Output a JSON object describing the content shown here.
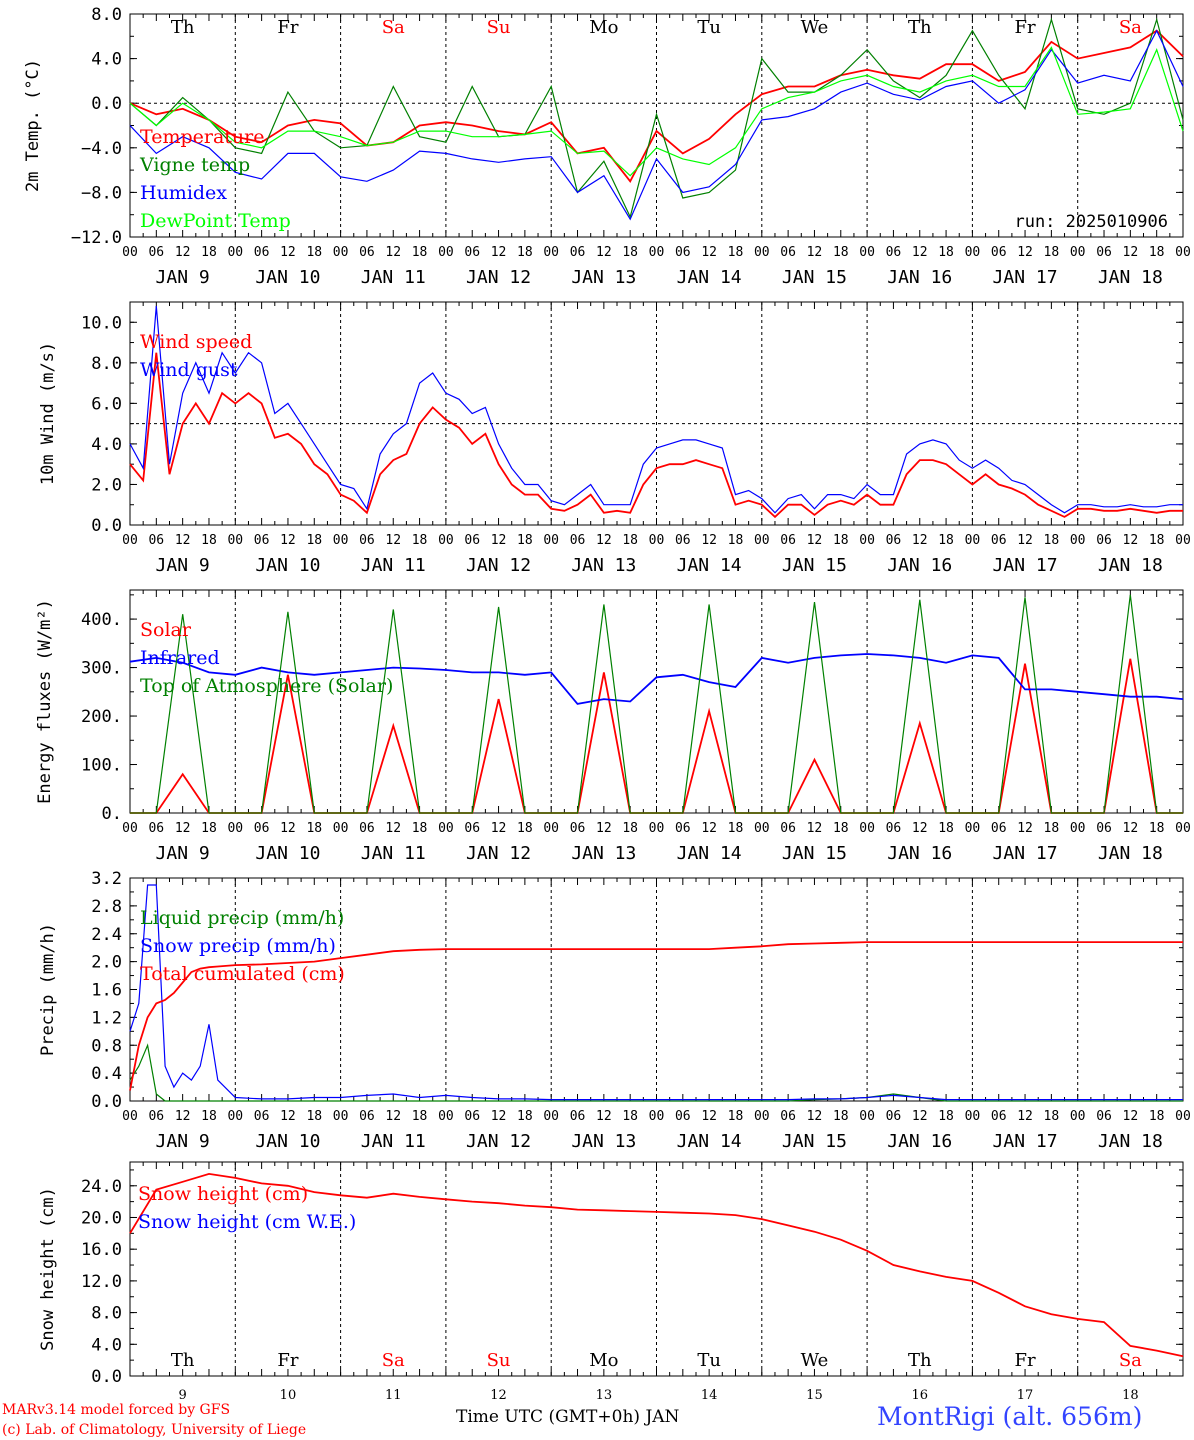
{
  "days": [
    "Th",
    "Fr",
    "Sa",
    "Su",
    "Mo",
    "Tu",
    "We",
    "Th",
    "Fr",
    "Sa"
  ],
  "weekend_flags": [
    false,
    false,
    true,
    true,
    false,
    false,
    false,
    false,
    false,
    true
  ],
  "date_labels": [
    "JAN  9",
    "JAN 10",
    "JAN 11",
    "JAN 12",
    "JAN 13",
    "JAN 14",
    "JAN 15",
    "JAN 16",
    "JAN 17",
    "JAN 18"
  ],
  "day_numbers": [
    "9",
    "10",
    "11",
    "12",
    "13",
    "14",
    "15",
    "16",
    "17",
    "18"
  ],
  "hour_ticks": [
    "00",
    "06",
    "12",
    "18"
  ],
  "last_tick": "00",
  "x_title": "Time UTC (GMT+0h) JAN",
  "station": "MontRigi (alt. 656m)",
  "footer_line1": "MARv3.14 model forced by GFS",
  "footer_line2": "(c) Lab. of Climatology, University of Liege",
  "run_label": "run: 2025010906",
  "colors": {
    "red": "#ff0000",
    "green": "#008000",
    "blue": "#0000ff",
    "lightgreen": "#00ff00",
    "weekend": "#ff0000"
  },
  "chart_data": [
    {
      "type": "line",
      "ylabel": "2m Temp. (°C)",
      "ylim": [
        -12,
        8
      ],
      "ticks": [
        "8.0",
        "4.0",
        "0.0",
        "−4.0",
        "−8.0",
        "−12.0"
      ],
      "tick_values": [
        8,
        4,
        0,
        -4,
        -8,
        -12
      ],
      "ref_line": 0,
      "x_hours": [
        0,
        6,
        12,
        18,
        24,
        30,
        36,
        42,
        48,
        54,
        60,
        66,
        72,
        78,
        84,
        90,
        96,
        102,
        108,
        114,
        120,
        126,
        132,
        138,
        144,
        150,
        156,
        162,
        168,
        174,
        180,
        186,
        192,
        198,
        204,
        210,
        216,
        222,
        228,
        234,
        240
      ],
      "series": [
        {
          "name": "Temperature",
          "color": "red",
          "values": [
            0,
            -1,
            -0.5,
            -1.5,
            -3,
            -3.5,
            -2,
            -1.5,
            -1.8,
            -3.8,
            -3.5,
            -2,
            -1.7,
            -2,
            -2.5,
            -2.8,
            -1.7,
            -4.5,
            -4,
            -7,
            -2.5,
            -4.5,
            -3.2,
            -1,
            0.8,
            1.5,
            1.5,
            2.5,
            3,
            2.5,
            2.2,
            3.5,
            3.5,
            2,
            2.8,
            5.5,
            4,
            4.5,
            5,
            6.5,
            4.2
          ]
        },
        {
          "name": "Vigne temp",
          "color": "green",
          "values": [
            0,
            -2,
            0.5,
            -1.5,
            -4,
            -4.5,
            1,
            -2.5,
            -4,
            -3.8,
            1.5,
            -3,
            -3.5,
            1.5,
            -3,
            -2.8,
            1.5,
            -8,
            -5.2,
            -10.2,
            -1,
            -8.5,
            -8,
            -6,
            4,
            1,
            1,
            2.5,
            4.8,
            2,
            0.5,
            2.5,
            6.5,
            2.5,
            -0.5,
            7.5,
            -0.5,
            -1,
            0,
            7.5,
            -1.5
          ]
        },
        {
          "name": "Humidex",
          "color": "blue",
          "values": [
            -2,
            -4.5,
            -3,
            -4,
            -6.2,
            -6.8,
            -4.5,
            -4.5,
            -6.6,
            -7,
            -6,
            -4.3,
            -4.5,
            -5,
            -5.3,
            -5,
            -4.8,
            -8,
            -6.5,
            -10.4,
            -5,
            -8,
            -7.5,
            -5.5,
            -1.5,
            -1.2,
            -0.5,
            1,
            1.8,
            0.8,
            0.3,
            1.5,
            2,
            0,
            1.2,
            4.8,
            1.8,
            2.5,
            2,
            6.5,
            1.5
          ]
        },
        {
          "name": "DewPoint Temp",
          "color": "lightgreen",
          "values": [
            0,
            -2,
            0,
            -1.5,
            -3.5,
            -4,
            -2.5,
            -2.5,
            -3,
            -3.8,
            -3.5,
            -2.5,
            -2.5,
            -3,
            -3,
            -2.8,
            -2.5,
            -4.5,
            -4.3,
            -6.5,
            -4,
            -5,
            -5.5,
            -4,
            -0.5,
            0.5,
            1,
            2,
            2.5,
            1.5,
            1,
            2,
            2.5,
            1.5,
            1.5,
            5,
            -1,
            -0.8,
            -0.5,
            4.8,
            -2.5
          ]
        }
      ]
    },
    {
      "type": "line",
      "ylabel": "10m Wind (m/s)",
      "ylim": [
        0,
        11
      ],
      "ticks": [
        "10.0",
        "8.0",
        "6.0",
        "4.0",
        "2.0",
        "0.0"
      ],
      "tick_values": [
        10,
        8,
        6,
        4,
        2,
        0
      ],
      "ref_line": 5,
      "x_hours": [
        0,
        3,
        6,
        9,
        12,
        15,
        18,
        21,
        24,
        27,
        30,
        33,
        36,
        39,
        42,
        45,
        48,
        51,
        54,
        57,
        60,
        63,
        66,
        69,
        72,
        75,
        78,
        81,
        84,
        87,
        90,
        93,
        96,
        99,
        102,
        105,
        108,
        111,
        114,
        117,
        120,
        123,
        126,
        129,
        132,
        135,
        138,
        141,
        144,
        147,
        150,
        153,
        156,
        159,
        162,
        165,
        168,
        171,
        174,
        177,
        180,
        183,
        186,
        189,
        192,
        195,
        198,
        201,
        204,
        207,
        210,
        213,
        216,
        219,
        222,
        225,
        228,
        231,
        234,
        237,
        240
      ],
      "series": [
        {
          "name": "Wind speed",
          "color": "red",
          "values": [
            3,
            2.2,
            8.5,
            2.5,
            5,
            6,
            5,
            6.5,
            6,
            6.5,
            6,
            4.3,
            4.5,
            4,
            3,
            2.5,
            1.5,
            1.2,
            0.6,
            2.5,
            3.2,
            3.5,
            5,
            5.8,
            5.2,
            4.8,
            4,
            4.5,
            3,
            2,
            1.5,
            1.5,
            0.8,
            0.7,
            1,
            1.5,
            0.6,
            0.7,
            0.6,
            2,
            2.8,
            3,
            3,
            3.2,
            3,
            2.8,
            1,
            1.2,
            1,
            0.4,
            1,
            1,
            0.5,
            1,
            1.2,
            1,
            1.5,
            1,
            1,
            2.5,
            3.2,
            3.2,
            3,
            2.5,
            2,
            2.5,
            2,
            1.8,
            1.5,
            1,
            0.7,
            0.4,
            0.8,
            0.8,
            0.7,
            0.7,
            0.8,
            0.7,
            0.6,
            0.7,
            0.7
          ]
        },
        {
          "name": "Wind gust",
          "color": "blue",
          "values": [
            4,
            2.8,
            10.8,
            3,
            6.5,
            8,
            6.5,
            8.5,
            7.5,
            8.5,
            8,
            5.5,
            6,
            5,
            4,
            3,
            2,
            1.8,
            0.8,
            3.5,
            4.5,
            5,
            7,
            7.5,
            6.5,
            6.2,
            5.5,
            5.8,
            4,
            2.8,
            2,
            2,
            1.2,
            1,
            1.5,
            2,
            1,
            1,
            1,
            3,
            3.8,
            4,
            4.2,
            4.2,
            4,
            3.8,
            1.5,
            1.7,
            1.3,
            0.6,
            1.3,
            1.5,
            0.8,
            1.5,
            1.5,
            1.3,
            2,
            1.5,
            1.5,
            3.5,
            4,
            4.2,
            4,
            3.2,
            2.8,
            3.2,
            2.8,
            2.2,
            2,
            1.5,
            1,
            0.6,
            1,
            1,
            0.9,
            0.9,
            1,
            0.9,
            0.9,
            1,
            1
          ]
        }
      ]
    },
    {
      "type": "line",
      "ylabel": "Energy fluxes (W/m²)",
      "ylim": [
        0,
        460
      ],
      "ticks": [
        "400.",
        "300.",
        "200.",
        "100.",
        "0."
      ],
      "tick_values": [
        400,
        300,
        200,
        100,
        0
      ],
      "x_hours": [
        0,
        6,
        12,
        18,
        24,
        30,
        36,
        42,
        48,
        54,
        60,
        66,
        72,
        78,
        84,
        90,
        96,
        102,
        108,
        114,
        120,
        126,
        132,
        138,
        144,
        150,
        156,
        162,
        168,
        174,
        180,
        186,
        192,
        198,
        204,
        210,
        216,
        222,
        228,
        234,
        240
      ],
      "series": [
        {
          "name": "Solar",
          "color": "red",
          "values": [
            0,
            0,
            80,
            0,
            0,
            0,
            285,
            0,
            0,
            0,
            180,
            0,
            0,
            0,
            235,
            0,
            0,
            0,
            290,
            0,
            0,
            0,
            210,
            0,
            0,
            0,
            110,
            0,
            0,
            0,
            185,
            0,
            0,
            0,
            308,
            0,
            0,
            0,
            318,
            0,
            0
          ]
        },
        {
          "name": "Infrared",
          "color": "blue",
          "values": [
            312,
            320,
            310,
            290,
            285,
            300,
            290,
            285,
            290,
            295,
            300,
            298,
            295,
            290,
            290,
            285,
            290,
            225,
            235,
            230,
            280,
            285,
            270,
            260,
            320,
            310,
            320,
            325,
            328,
            325,
            320,
            310,
            325,
            320,
            255,
            255,
            250,
            245,
            240,
            240,
            235
          ]
        },
        {
          "name": "Top of Atmosphere (Solar)",
          "color": "green",
          "values": [
            0,
            0,
            410,
            0,
            0,
            0,
            415,
            0,
            0,
            0,
            420,
            0,
            0,
            0,
            425,
            0,
            0,
            0,
            430,
            0,
            0,
            0,
            430,
            0,
            0,
            0,
            435,
            0,
            0,
            0,
            440,
            0,
            0,
            0,
            445,
            0,
            0,
            0,
            450,
            0,
            0
          ]
        }
      ]
    },
    {
      "type": "line",
      "ylabel": "Precip (mm/h)",
      "ylim": [
        0,
        3.2
      ],
      "ticks": [
        "3.2",
        "2.8",
        "2.4",
        "2.0",
        "1.6",
        "1.2",
        "0.8",
        "0.4",
        "0.0"
      ],
      "tick_values": [
        3.2,
        2.8,
        2.4,
        2,
        1.6,
        1.2,
        0.8,
        0.4,
        0
      ],
      "x_hours": [
        0,
        2,
        4,
        6,
        8,
        10,
        12,
        14,
        16,
        18,
        20,
        24,
        30,
        36,
        42,
        48,
        54,
        60,
        66,
        72,
        78,
        84,
        90,
        96,
        102,
        108,
        114,
        120,
        126,
        132,
        138,
        144,
        150,
        156,
        162,
        168,
        174,
        180,
        186,
        192,
        198,
        204,
        210,
        216,
        222,
        228,
        234,
        240
      ],
      "series": [
        {
          "name": "Liquid precip (mm/h)",
          "color": "green",
          "values": [
            0.3,
            0.5,
            0.8,
            0.1,
            0,
            0,
            0,
            0,
            0,
            0,
            0,
            0,
            0,
            0,
            0,
            0,
            0,
            0,
            0,
            0,
            0,
            0,
            0,
            0,
            0,
            0,
            0,
            0,
            0,
            0,
            0,
            0,
            0,
            0.02,
            0.03,
            0.05,
            0.1,
            0.05,
            0,
            0,
            0,
            0,
            0,
            0,
            0,
            0,
            0,
            0
          ]
        },
        {
          "name": "Snow precip (mm/h)",
          "color": "blue",
          "values": [
            1,
            1.4,
            3.1,
            3.1,
            0.5,
            0.2,
            0.4,
            0.3,
            0.5,
            1.1,
            0.3,
            0.05,
            0.03,
            0.03,
            0.05,
            0.05,
            0.08,
            0.1,
            0.05,
            0.08,
            0.05,
            0.03,
            0.03,
            0.02,
            0.02,
            0.02,
            0.02,
            0.02,
            0.02,
            0.02,
            0.02,
            0.02,
            0.02,
            0.03,
            0.03,
            0.05,
            0.08,
            0.05,
            0.02,
            0.02,
            0.02,
            0.02,
            0.02,
            0.02,
            0.02,
            0.02,
            0.02,
            0.02
          ]
        },
        {
          "name": "Total cumulated (cm)",
          "color": "red",
          "values": [
            0.15,
            0.8,
            1.2,
            1.4,
            1.45,
            1.55,
            1.7,
            1.85,
            1.9,
            1.92,
            1.93,
            1.95,
            1.96,
            1.98,
            2,
            2.05,
            2.1,
            2.15,
            2.17,
            2.18,
            2.18,
            2.18,
            2.18,
            2.18,
            2.18,
            2.18,
            2.18,
            2.18,
            2.18,
            2.18,
            2.2,
            2.22,
            2.25,
            2.26,
            2.27,
            2.28,
            2.28,
            2.28,
            2.28,
            2.28,
            2.28,
            2.28,
            2.28,
            2.28,
            2.28,
            2.28,
            2.28,
            2.28
          ]
        }
      ]
    },
    {
      "type": "line",
      "ylabel": "Snow height (cm)",
      "ylim": [
        0,
        27
      ],
      "ticks": [
        "24.0",
        "20.0",
        "16.0",
        "12.0",
        "8.0",
        "4.0",
        "0.0"
      ],
      "tick_values": [
        24,
        20,
        16,
        12,
        8,
        4,
        0
      ],
      "x_hours": [
        0,
        6,
        12,
        18,
        24,
        30,
        36,
        42,
        48,
        54,
        60,
        66,
        72,
        78,
        84,
        90,
        96,
        102,
        108,
        114,
        120,
        126,
        132,
        138,
        144,
        150,
        156,
        162,
        168,
        174,
        180,
        186,
        192,
        198,
        204,
        210,
        216,
        222,
        228,
        234,
        240
      ],
      "series": [
        {
          "name": "Snow height (cm)",
          "color": "red",
          "values": [
            18,
            23.5,
            24.5,
            25.5,
            25,
            24.3,
            24,
            23.2,
            22.8,
            22.5,
            23,
            22.6,
            22.3,
            22,
            21.8,
            21.5,
            21.3,
            21,
            20.9,
            20.8,
            20.7,
            20.6,
            20.5,
            20.3,
            19.8,
            19,
            18.2,
            17.2,
            15.8,
            14,
            13.2,
            12.5,
            12,
            10.5,
            8.8,
            7.8,
            7.2,
            6.8,
            3.8,
            3.2,
            2.5
          ]
        },
        {
          "name": "Snow height (cm W.E.)",
          "color": "blue",
          "values": []
        }
      ]
    }
  ]
}
